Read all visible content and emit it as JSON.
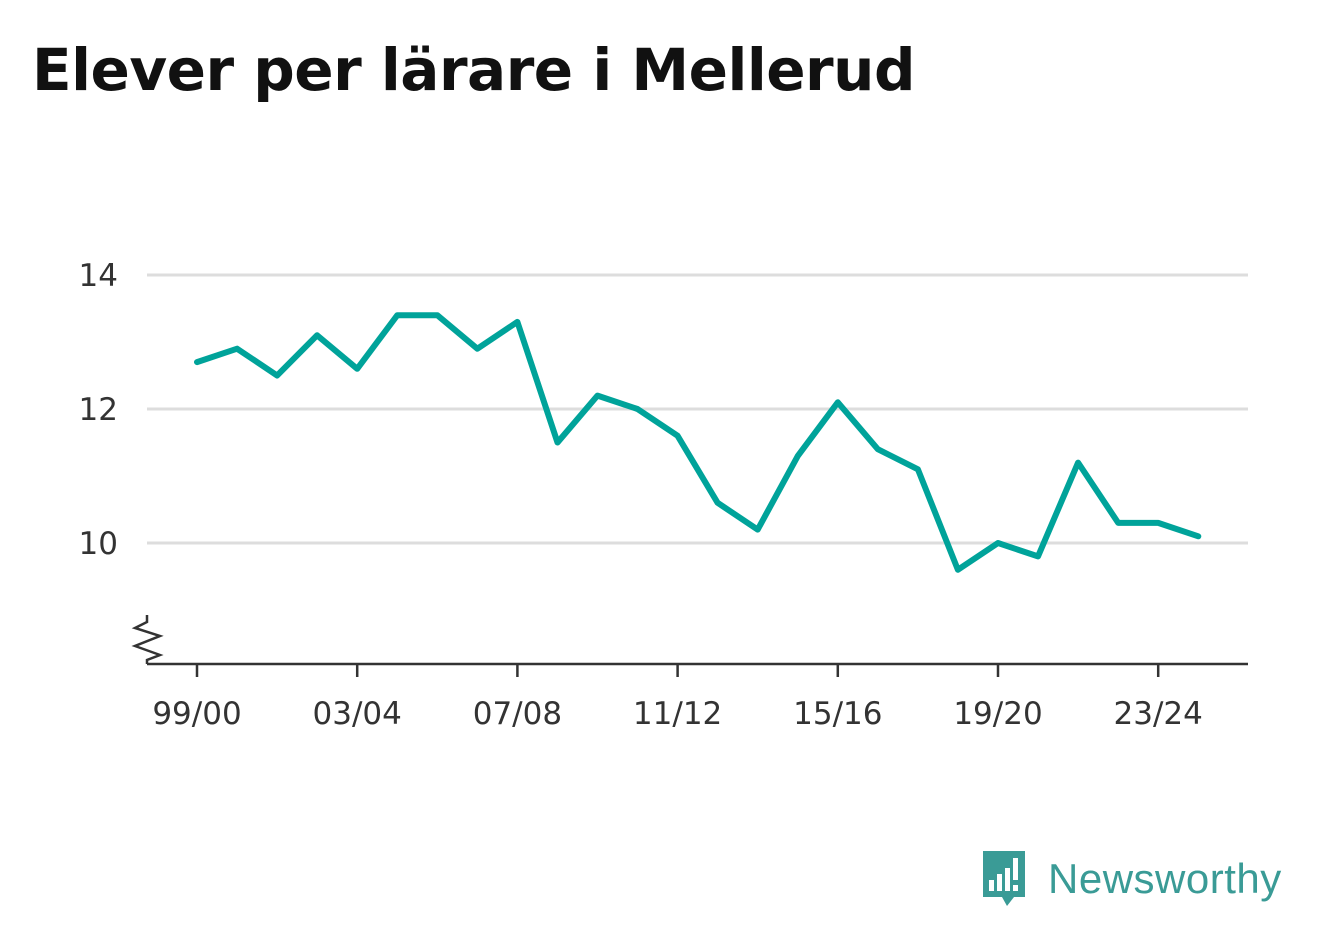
{
  "brand": {
    "name": "Newsworthy",
    "color": "#3a9b96"
  },
  "chart_data": {
    "type": "line",
    "title": "Elever per lärare i Mellerud",
    "xlabel": "",
    "ylabel": "",
    "x": [
      "99/00",
      "00/01",
      "01/02",
      "02/03",
      "03/04",
      "04/05",
      "05/06",
      "06/07",
      "07/08",
      "08/09",
      "09/10",
      "10/11",
      "11/12",
      "12/13",
      "13/14",
      "14/15",
      "15/16",
      "16/17",
      "17/18",
      "18/19",
      "19/20",
      "20/21",
      "21/22",
      "22/23",
      "23/24",
      "24/25"
    ],
    "x_tick_labels": [
      "99/00",
      "03/04",
      "07/08",
      "11/12",
      "15/16",
      "19/20",
      "23/24"
    ],
    "y_ticks": [
      10,
      12,
      14
    ],
    "ylim": [
      8.2,
      14
    ],
    "y_axis_break": true,
    "grid": true,
    "series": [
      {
        "color": "#00a39a",
        "values": [
          12.7,
          12.9,
          12.5,
          13.1,
          12.6,
          13.4,
          13.4,
          12.9,
          13.3,
          11.5,
          12.2,
          12.0,
          11.6,
          10.6,
          10.2,
          11.3,
          12.1,
          11.4,
          11.1,
          9.6,
          10.0,
          9.8,
          11.2,
          10.3,
          10.3,
          10.1
        ]
      }
    ]
  }
}
